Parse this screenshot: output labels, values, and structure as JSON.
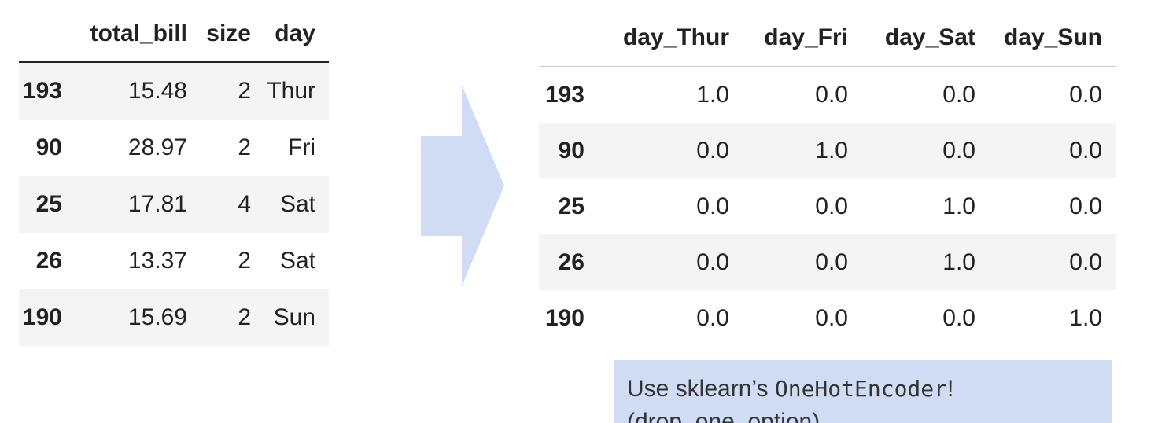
{
  "left_table": {
    "columns": [
      "",
      "total_bill",
      "size",
      "day"
    ],
    "rows": [
      {
        "index": "193",
        "total_bill": "15.48",
        "size": "2",
        "day": "Thur"
      },
      {
        "index": "90",
        "total_bill": "28.97",
        "size": "2",
        "day": "Fri"
      },
      {
        "index": "25",
        "total_bill": "17.81",
        "size": "4",
        "day": "Sat"
      },
      {
        "index": "26",
        "total_bill": "13.37",
        "size": "2",
        "day": "Sat"
      },
      {
        "index": "190",
        "total_bill": "15.69",
        "size": "2",
        "day": "Sun"
      }
    ]
  },
  "right_table": {
    "columns": [
      "",
      "day_Thur",
      "day_Fri",
      "day_Sat",
      "day_Sun"
    ],
    "rows": [
      {
        "index": "193",
        "values": [
          "1.0",
          "0.0",
          "0.0",
          "0.0"
        ]
      },
      {
        "index": "90",
        "values": [
          "0.0",
          "1.0",
          "0.0",
          "0.0"
        ]
      },
      {
        "index": "25",
        "values": [
          "0.0",
          "0.0",
          "1.0",
          "0.0"
        ]
      },
      {
        "index": "26",
        "values": [
          "0.0",
          "0.0",
          "1.0",
          "0.0"
        ]
      },
      {
        "index": "190",
        "values": [
          "0.0",
          "0.0",
          "0.0",
          "1.0"
        ]
      }
    ]
  },
  "arrow": {
    "icon": "right-arrow-icon",
    "color": "#cfdcf3"
  },
  "note": {
    "prefix": "Use sklearn’s ",
    "code": "OneHotEncoder",
    "suffix": "!",
    "second_line": "(drop_one_option)"
  },
  "colors": {
    "stripe": "#f4f4f4",
    "note_bg": "#cfdcf3",
    "text": "#222222"
  }
}
